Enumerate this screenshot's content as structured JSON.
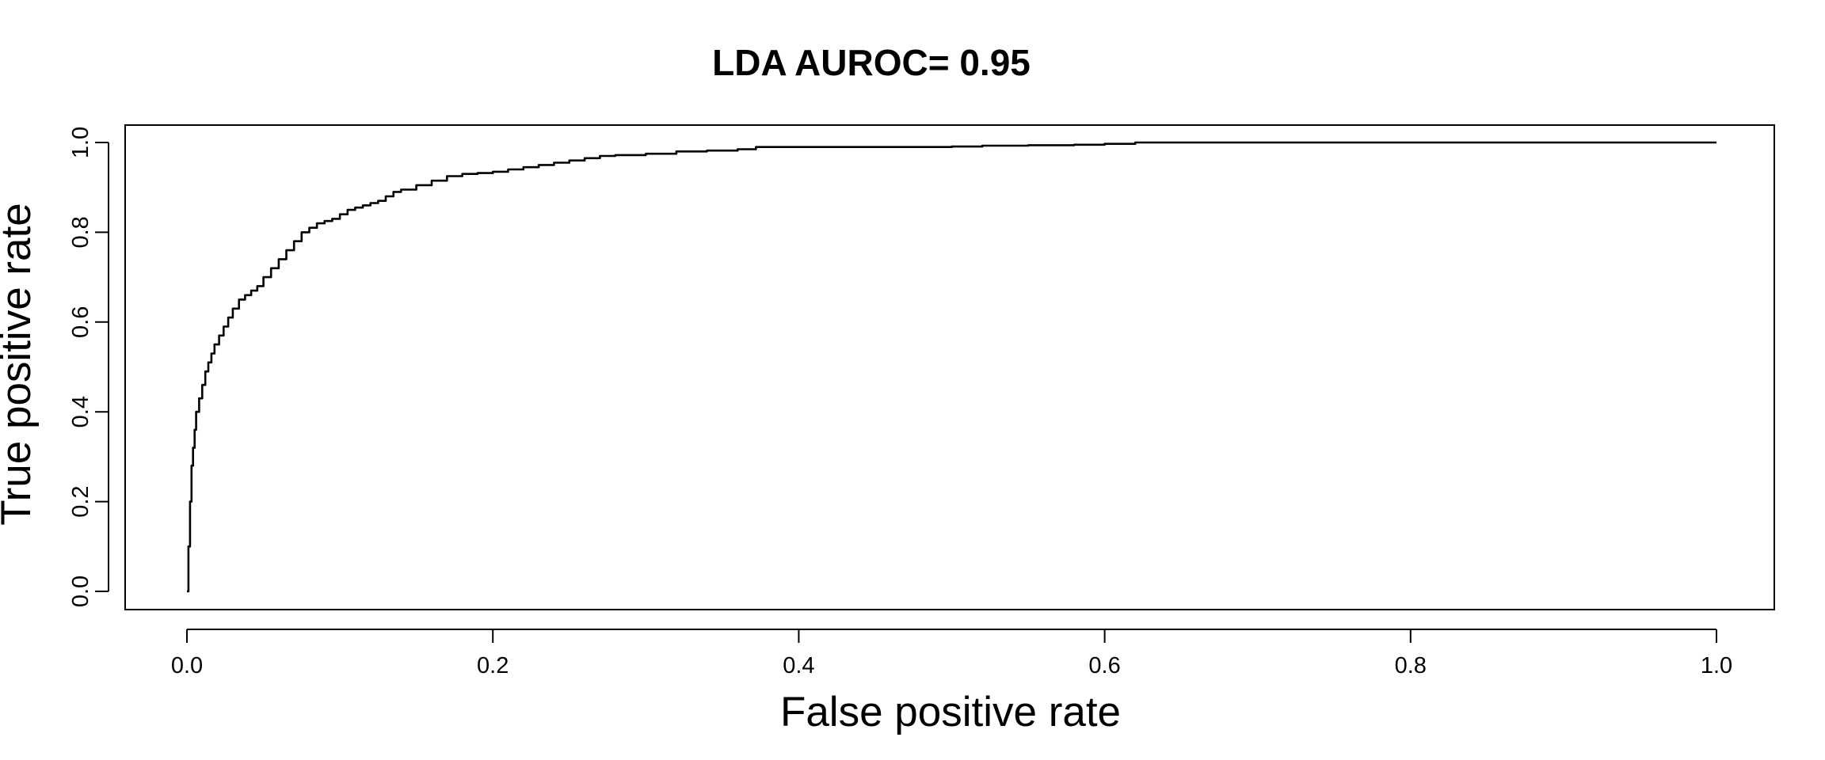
{
  "chart_data": {
    "type": "line",
    "title": "LDA AUROC= 0.95",
    "xlabel": "False positive rate",
    "ylabel": "True positive rate",
    "xlim": [
      0,
      1
    ],
    "ylim": [
      0,
      1
    ],
    "grid": false,
    "legend": "none",
    "line_color": "#000000",
    "x_ticks": [
      {
        "value": 0.0,
        "label": "0.0"
      },
      {
        "value": 0.2,
        "label": "0.2"
      },
      {
        "value": 0.4,
        "label": "0.4"
      },
      {
        "value": 0.6,
        "label": "0.6"
      },
      {
        "value": 0.8,
        "label": "0.8"
      },
      {
        "value": 1.0,
        "label": "1.0"
      }
    ],
    "y_ticks": [
      {
        "value": 0.0,
        "label": "0.0"
      },
      {
        "value": 0.2,
        "label": "0.2"
      },
      {
        "value": 0.4,
        "label": "0.4"
      },
      {
        "value": 0.6,
        "label": "0.6"
      },
      {
        "value": 0.8,
        "label": "0.8"
      },
      {
        "value": 1.0,
        "label": "1.0"
      }
    ],
    "series": [
      {
        "x": [
          0.0,
          0.001,
          0.002,
          0.003,
          0.004,
          0.005,
          0.006,
          0.008,
          0.01,
          0.012,
          0.014,
          0.016,
          0.018,
          0.021,
          0.024,
          0.027,
          0.03,
          0.034,
          0.038,
          0.042,
          0.046,
          0.05,
          0.055,
          0.06,
          0.065,
          0.07,
          0.075,
          0.08,
          0.085,
          0.09,
          0.095,
          0.1,
          0.105,
          0.11,
          0.115,
          0.12,
          0.125,
          0.13,
          0.135,
          0.14,
          0.15,
          0.16,
          0.17,
          0.18,
          0.19,
          0.2,
          0.21,
          0.22,
          0.23,
          0.24,
          0.25,
          0.26,
          0.27,
          0.28,
          0.3,
          0.32,
          0.34,
          0.36,
          0.372,
          0.4,
          0.45,
          0.5,
          0.52,
          0.55,
          0.58,
          0.6,
          0.62,
          0.7,
          0.8,
          0.9,
          1.0
        ],
        "y": [
          0.0,
          0.1,
          0.2,
          0.28,
          0.32,
          0.36,
          0.4,
          0.43,
          0.46,
          0.49,
          0.51,
          0.53,
          0.55,
          0.57,
          0.59,
          0.61,
          0.63,
          0.65,
          0.66,
          0.67,
          0.68,
          0.7,
          0.72,
          0.74,
          0.76,
          0.78,
          0.8,
          0.81,
          0.82,
          0.825,
          0.83,
          0.84,
          0.85,
          0.855,
          0.86,
          0.865,
          0.87,
          0.88,
          0.89,
          0.895,
          0.905,
          0.915,
          0.925,
          0.93,
          0.932,
          0.935,
          0.94,
          0.945,
          0.95,
          0.955,
          0.96,
          0.965,
          0.97,
          0.972,
          0.975,
          0.98,
          0.982,
          0.985,
          0.99,
          0.99,
          0.99,
          0.991,
          0.993,
          0.994,
          0.995,
          0.997,
          1.0,
          1.0,
          1.0,
          1.0,
          1.0
        ]
      }
    ]
  }
}
